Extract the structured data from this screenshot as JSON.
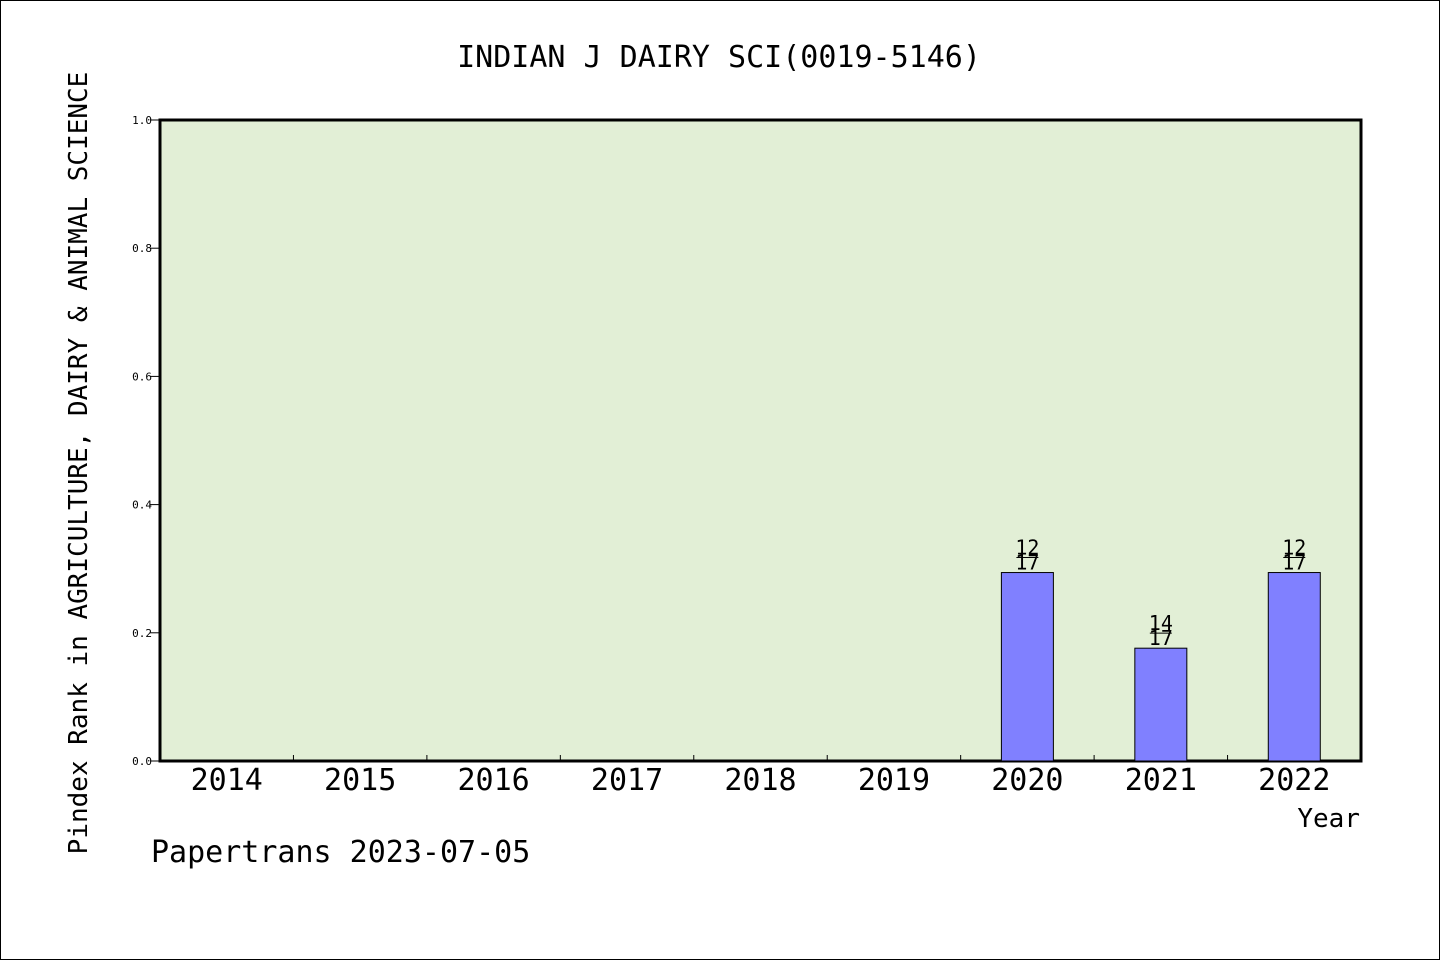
{
  "chart_data": {
    "type": "bar",
    "title": "INDIAN J DAIRY SCI(0019-5146)",
    "xlabel": "Year",
    "ylabel": "Pindex Rank in AGRICULTURE, DAIRY & ANIMAL SCIENCE",
    "categories": [
      "2014",
      "2015",
      "2016",
      "2017",
      "2018",
      "2019",
      "2020",
      "2021",
      "2022"
    ],
    "values": [
      null,
      null,
      null,
      null,
      null,
      null,
      0.294,
      0.176,
      0.294
    ],
    "bar_labels": [
      null,
      null,
      null,
      null,
      null,
      null,
      {
        "numerator": "12",
        "denominator": "17"
      },
      {
        "numerator": "14",
        "denominator": "17"
      },
      {
        "numerator": "12",
        "denominator": "17"
      }
    ],
    "ylim": [
      0,
      1.0
    ],
    "yticks": [
      "0.0",
      "0.2",
      "0.4",
      "0.6",
      "0.8",
      "1.0"
    ],
    "grid": false,
    "colors": {
      "plot_background": "#e2efd6",
      "bar_fill": "#8080ff",
      "bar_stroke": "#000000"
    }
  },
  "footer": {
    "note": "Papertrans 2023-07-05"
  }
}
